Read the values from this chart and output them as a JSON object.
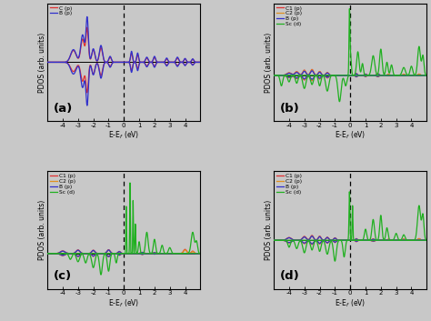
{
  "xlabel": "E-E$_f$ (eV)",
  "ylabel": "PDOS (arb. units)",
  "bg_color": "#c8c8c8",
  "panel_a": {
    "legend": [
      "C (p)",
      "B (p)"
    ],
    "colors": [
      "#e03030",
      "#3030cc"
    ]
  },
  "panel_bcd": {
    "legend": [
      "C1 (p)",
      "C2 (p)",
      "B (p)",
      "Sc (d)"
    ],
    "colors": [
      "#e03030",
      "#e09020",
      "#3030cc",
      "#20b020"
    ]
  }
}
